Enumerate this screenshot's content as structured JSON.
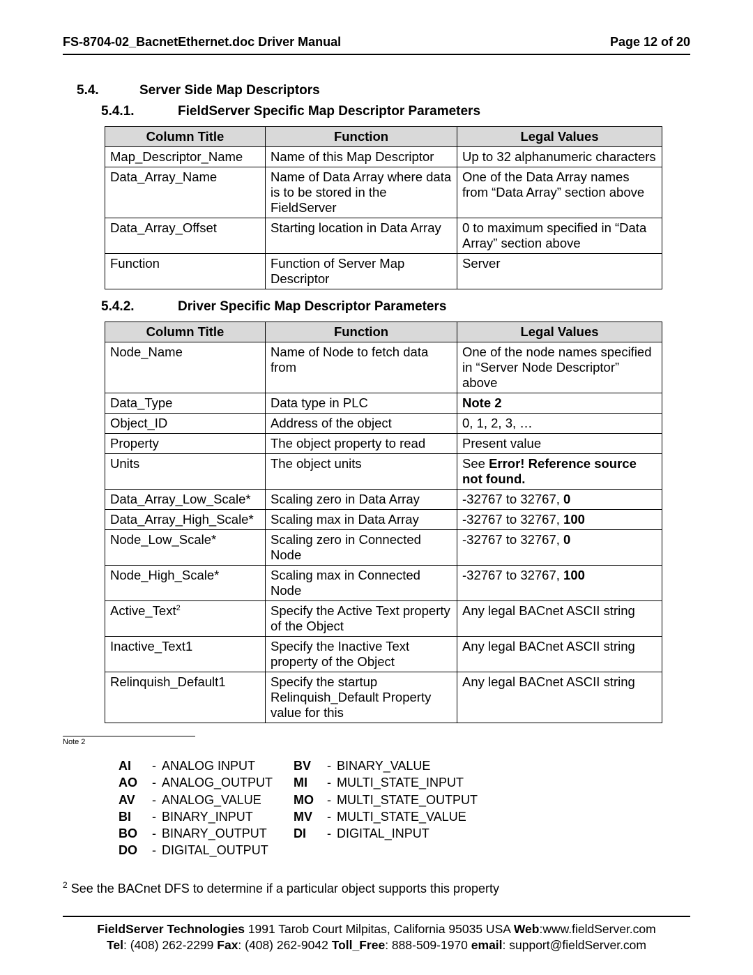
{
  "header": {
    "left": "FS-8704-02_BacnetEthernet.doc Driver Manual",
    "right": "Page 12 of 20"
  },
  "section": {
    "num": "5.4.",
    "title": "Server Side Map Descriptors"
  },
  "sub1": {
    "num": "5.4.1.",
    "title": "FieldServer Specific Map Descriptor Parameters",
    "cols": [
      "Column Title",
      "Function",
      "Legal Values"
    ],
    "rows": [
      [
        "Map_Descriptor_Name",
        "Name of this Map Descriptor",
        "Up to 32 alphanumeric characters"
      ],
      [
        "Data_Array_Name",
        "Name of Data Array where data is to be stored in the FieldServer",
        "One of the Data Array names from “Data Array” section above"
      ],
      [
        "Data_Array_Offset",
        "Starting location in Data Array",
        "0 to maximum specified in “Data Array” section above"
      ],
      [
        "Function",
        "Function of Server Map Descriptor",
        "Server"
      ]
    ]
  },
  "sub2": {
    "num": "5.4.2.",
    "title": "Driver Specific Map Descriptor Parameters",
    "cols": [
      "Column Title",
      "Function",
      "Legal Values"
    ],
    "rows": [
      {
        "c0": "Node_Name",
        "c1": "Name of Node to fetch data from",
        "c2": "One of the node names specified in “Server Node Descriptor” above"
      },
      {
        "c0": "Data_Type",
        "c1": "Data type in PLC",
        "c2_bold": "Note 2"
      },
      {
        "c0": "Object_ID",
        "c1": "Address of the object",
        "c2": "0, 1, 2, 3, …"
      },
      {
        "c0": "Property",
        "c1": "The object property to read",
        "c2": "Present value"
      },
      {
        "c0": "Units",
        "c1": "The object units",
        "c2_pre": "See ",
        "c2_bold": "Error! Reference source not found."
      },
      {
        "c0": "Data_Array_Low_Scale*",
        "c1": "Scaling zero in Data Array",
        "c2": "-32767 to 32767, ",
        "c2_bold": "0"
      },
      {
        "c0": "Data_Array_High_Scale*",
        "c1": "Scaling max in Data Array",
        "c2": "-32767 to 32767, ",
        "c2_bold": "100"
      },
      {
        "c0": "Node_Low_Scale*",
        "c1": "Scaling zero in Connected Node",
        "c2": "-32767 to 32767, ",
        "c2_bold": "0"
      },
      {
        "c0": "Node_High_Scale*",
        "c1": "Scaling max in Connected Node",
        "c2": "-32767 to 32767, ",
        "c2_bold": "100"
      },
      {
        "c0": "Active_Text",
        "sup": "2",
        "c1": "Specify the Active Text property of the Object",
        "c2": "Any legal BACnet ASCII string"
      },
      {
        "c0": "Inactive_Text1",
        "c1": "Specify the Inactive Text property of the Object",
        "c2": "Any legal BACnet ASCII string"
      },
      {
        "c0": "Relinquish_Default1",
        "c1": "Specify the startup Relinquish_Default Property value for this",
        "c2": "Any legal BACnet ASCII string"
      }
    ]
  },
  "note_label": "Note 2",
  "abbrev": {
    "left": [
      {
        "k": "AI",
        "v": "ANALOG INPUT"
      },
      {
        "k": "AO",
        "v": "ANALOG_OUTPUT"
      },
      {
        "k": "AV",
        "v": "ANALOG_VALUE"
      },
      {
        "k": "BI",
        "v": "BINARY_INPUT"
      },
      {
        "k": "BO",
        "v": "BINARY_OUTPUT"
      },
      {
        "k": "DO",
        "v": "DIGITAL_OUTPUT"
      }
    ],
    "right": [
      {
        "k": "BV",
        "v": "BINARY_VALUE"
      },
      {
        "k": "MI",
        "v": "MULTI_STATE_INPUT"
      },
      {
        "k": "MO",
        "v": "MULTI_STATE_OUTPUT"
      },
      {
        "k": "MV",
        "v": "MULTI_STATE_VALUE"
      },
      {
        "k": "DI",
        "v": "DIGITAL_INPUT"
      }
    ]
  },
  "footnote_sup": "2",
  "footnote_text": " See the BACnet DFS to determine if a particular object supports this property",
  "footer": {
    "line1_bold": "FieldServer Technologies",
    "line1_rest": " 1991 Tarob Court Milpitas, California 95035 USA  ",
    "web_label": "Web",
    "web_val": ":www.fieldServer.com",
    "tel_label": "Tel",
    "tel_val": ": (408) 262-2299   ",
    "fax_label": "Fax",
    "fax_val": ": (408) 262-9042   ",
    "toll_label": "Toll_Free",
    "toll_val": ": 888-509-1970   ",
    "email_label": "email",
    "email_val": ": support@fieldServer.com"
  }
}
